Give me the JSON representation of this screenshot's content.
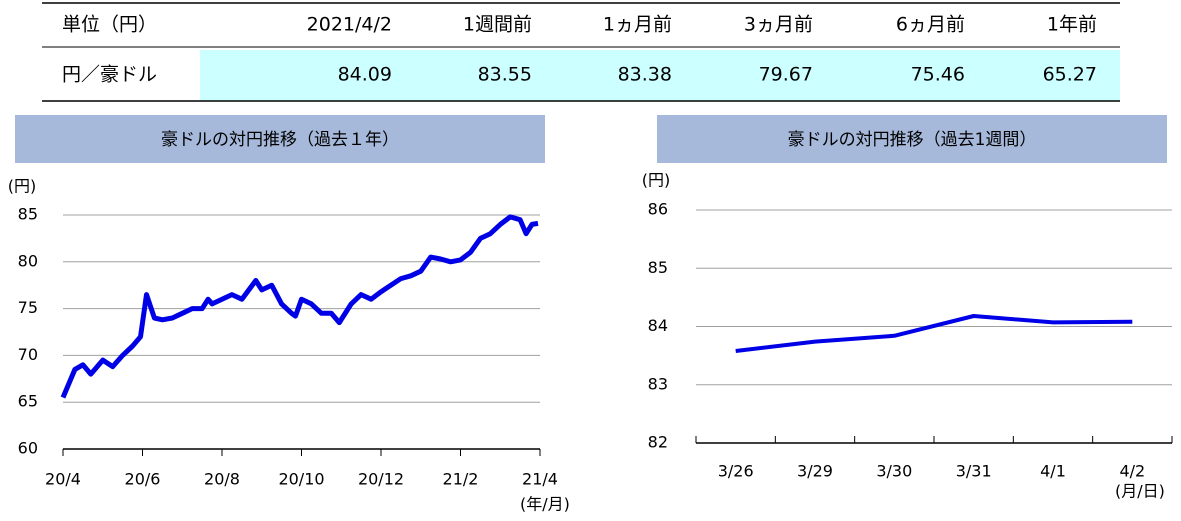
{
  "table": {
    "header": [
      "単位（円）",
      "2021/4/2",
      "1週間前",
      "1ヵ月前",
      "3ヵ月前",
      "6ヵ月前",
      "1年前"
    ],
    "rows": [
      [
        "円／豪ドル",
        84.09,
        83.55,
        83.38,
        79.67,
        75.46,
        65.27
      ]
    ]
  },
  "chart_data": [
    {
      "type": "line",
      "title": "豪ドルの対円推移（過去１年）",
      "y_unit_label": "(円)",
      "x_unit_label": "(年/月)",
      "color": "#0000e6",
      "grid": true,
      "x": [
        0,
        0.3,
        0.5,
        0.7,
        1.0,
        1.25,
        1.5,
        1.75,
        1.95,
        2.1,
        2.3,
        2.5,
        2.75,
        3.0,
        3.25,
        3.5,
        3.65,
        3.75,
        4.0,
        4.25,
        4.5,
        4.85,
        5.0,
        5.25,
        5.5,
        5.75,
        5.85,
        6.0,
        6.25,
        6.5,
        6.75,
        6.95,
        7.25,
        7.5,
        7.75,
        8.0,
        8.25,
        8.5,
        8.75,
        9.0,
        9.25,
        9.5,
        9.75,
        10.0,
        10.25,
        10.5,
        10.75,
        11.0,
        11.25,
        11.5,
        11.65,
        11.8,
        11.95
      ],
      "values": [
        65.5,
        68.5,
        69,
        68,
        69.5,
        68.8,
        70,
        71,
        72,
        76.5,
        74,
        73.8,
        74,
        74.5,
        75,
        75,
        76,
        75.5,
        76,
        76.5,
        76,
        78,
        77,
        77.5,
        75.5,
        74.5,
        74.2,
        76,
        75.5,
        74.5,
        74.5,
        73.5,
        75.5,
        76.5,
        76,
        76.8,
        77.5,
        78.2,
        78.5,
        79,
        80.5,
        80.3,
        80,
        80.2,
        81,
        82.5,
        83,
        84,
        84.8,
        84.5,
        83,
        84,
        84.1
      ],
      "xlim": [
        0,
        12
      ],
      "xticks": [
        {
          "value": 0,
          "label": "20/4"
        },
        {
          "value": 2,
          "label": "20/6"
        },
        {
          "value": 4,
          "label": "20/8"
        },
        {
          "value": 6,
          "label": "20/10"
        },
        {
          "value": 8,
          "label": "20/12"
        },
        {
          "value": 10,
          "label": "21/2"
        },
        {
          "value": 12,
          "label": "21/4"
        }
      ],
      "ylim": [
        60,
        85
      ],
      "yticks": [
        60,
        65,
        70,
        75,
        80,
        85
      ]
    },
    {
      "type": "line",
      "title": "豪ドルの対円推移（過去1週間）",
      "y_unit_label": "(円)",
      "x_unit_label": "(月/日)",
      "color": "#0000e6",
      "grid": true,
      "categories": [
        "3/26",
        "3/29",
        "3/30",
        "3/31",
        "4/1",
        "4/2"
      ],
      "values": [
        83.58,
        83.74,
        83.84,
        84.18,
        84.07,
        84.08
      ],
      "ylim": [
        82,
        86
      ],
      "yticks": [
        82,
        83,
        84,
        85,
        86
      ]
    }
  ]
}
